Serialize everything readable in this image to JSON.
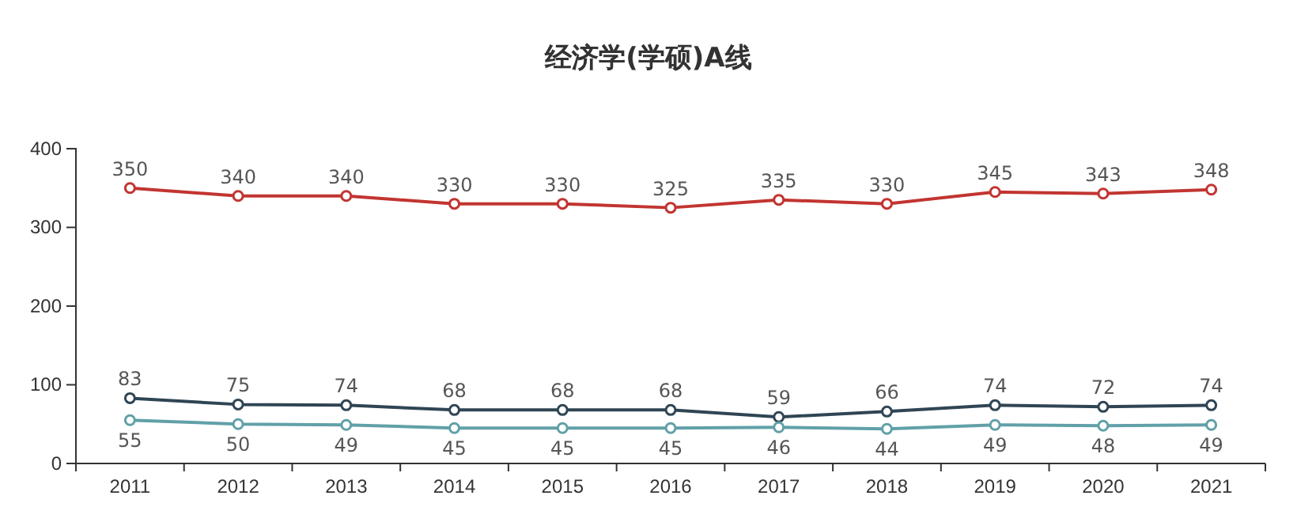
{
  "chart_data": {
    "type": "line",
    "title": "经济学(学硕)A线",
    "categories": [
      "2011",
      "2012",
      "2013",
      "2014",
      "2015",
      "2016",
      "2017",
      "2018",
      "2019",
      "2020",
      "2021"
    ],
    "series": [
      {
        "color": "#c23531",
        "values": [
          350,
          340,
          340,
          330,
          330,
          325,
          335,
          330,
          345,
          343,
          348
        ]
      },
      {
        "color": "#2f4554",
        "values": [
          83,
          75,
          74,
          68,
          68,
          68,
          59,
          66,
          74,
          72,
          74
        ]
      },
      {
        "color": "#61a0a8",
        "values": [
          55,
          50,
          49,
          45,
          45,
          45,
          46,
          44,
          49,
          48,
          49
        ]
      }
    ],
    "ylim": [
      0,
      400
    ],
    "yticks": [
      0,
      100,
      200,
      300,
      400
    ],
    "grid": false,
    "marker": "circle",
    "line_style": "solid",
    "data_labels": true
  }
}
